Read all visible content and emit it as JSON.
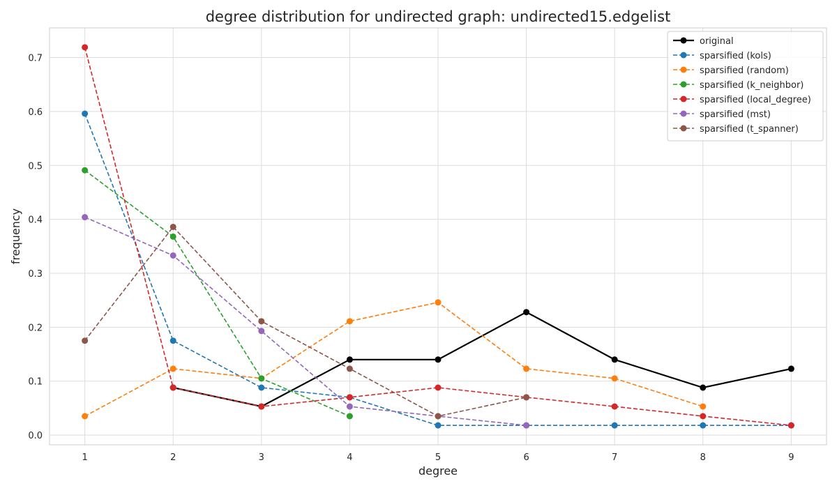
{
  "chart_data": {
    "type": "line",
    "title": "degree distribution for undirected graph: undirected15.edgelist",
    "xlabel": "degree",
    "ylabel": "frequency",
    "xlim": [
      0.6,
      9.4
    ],
    "ylim": [
      -0.018,
      0.755
    ],
    "xticks": [
      1,
      2,
      3,
      4,
      5,
      6,
      7,
      8,
      9
    ],
    "yticks": [
      0.0,
      0.1,
      0.2,
      0.3,
      0.4,
      0.5,
      0.6,
      0.7
    ],
    "ytick_labels": [
      "0.0",
      "0.1",
      "0.2",
      "0.3",
      "0.4",
      "0.5",
      "0.6",
      "0.7"
    ],
    "grid": true,
    "legend_position": "top-right",
    "series": [
      {
        "name": "original",
        "color": "#000000",
        "style": "solid",
        "x": [
          2,
          3,
          4,
          5,
          6,
          7,
          8,
          9
        ],
        "y": [
          0.088,
          0.053,
          0.14,
          0.14,
          0.228,
          0.14,
          0.088,
          0.123
        ]
      },
      {
        "name": "sparsified (kols)",
        "color": "#1f77b4",
        "style": "dashed",
        "x": [
          1,
          2,
          3,
          4,
          5,
          6,
          7,
          8,
          9
        ],
        "y": [
          0.596,
          0.175,
          0.088,
          0.07,
          0.018,
          0.018,
          0.018,
          0.018,
          0.018
        ]
      },
      {
        "name": "sparsified (random)",
        "color": "#ff7f0e",
        "style": "dashed",
        "x": [
          1,
          2,
          3,
          4,
          5,
          6,
          7,
          8
        ],
        "y": [
          0.035,
          0.123,
          0.105,
          0.211,
          0.246,
          0.123,
          0.105,
          0.053
        ]
      },
      {
        "name": "sparsified (k_neighbor)",
        "color": "#2ca02c",
        "style": "dashed",
        "x": [
          1,
          2,
          3,
          4
        ],
        "y": [
          0.491,
          0.368,
          0.105,
          0.035
        ]
      },
      {
        "name": "sparsified (local_degree)",
        "color": "#d62728",
        "style": "dashed",
        "x": [
          1,
          2,
          3,
          4,
          5,
          6,
          7,
          8,
          9
        ],
        "y": [
          0.719,
          0.088,
          0.053,
          0.07,
          0.088,
          0.07,
          0.053,
          0.035,
          0.018
        ]
      },
      {
        "name": "sparsified (mst)",
        "color": "#9467bd",
        "style": "dashed",
        "x": [
          1,
          2,
          3,
          4,
          5,
          6
        ],
        "y": [
          0.404,
          0.333,
          0.193,
          0.053,
          0.035,
          0.018
        ]
      },
      {
        "name": "sparsified (t_spanner)",
        "color": "#8c564b",
        "style": "dashed",
        "x": [
          1,
          2,
          3,
          4,
          5,
          6
        ],
        "y": [
          0.175,
          0.386,
          0.211,
          0.123,
          0.035,
          0.07
        ]
      }
    ]
  }
}
